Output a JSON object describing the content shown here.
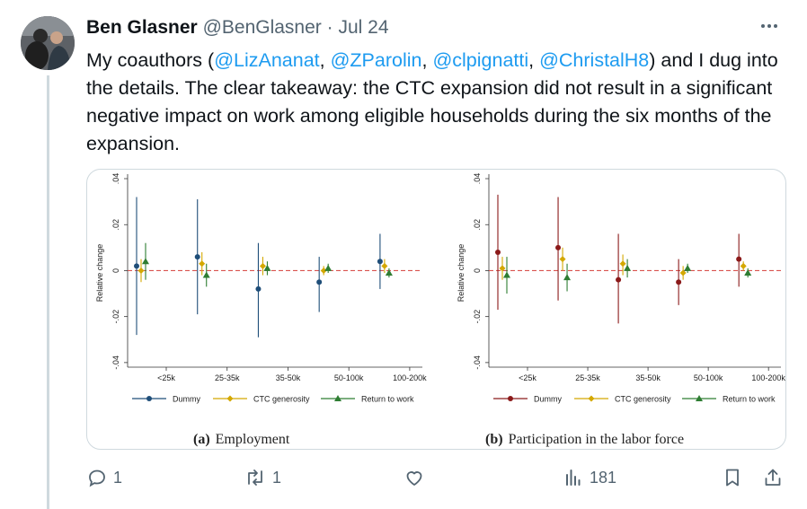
{
  "tweet": {
    "author_name": "Ben Glasner",
    "handle": "@BenGlasner",
    "separator": "·",
    "date": "Jul 24",
    "more_icon": "more-horizontal-icon",
    "text_parts": [
      {
        "text": "My coauthors (",
        "mention": false
      },
      {
        "text": "@LizAnanat",
        "mention": true
      },
      {
        "text": ", ",
        "mention": false
      },
      {
        "text": "@ZParolin",
        "mention": true
      },
      {
        "text": ", ",
        "mention": false
      },
      {
        "text": "@clpignatti",
        "mention": true
      },
      {
        "text": ", ",
        "mention": false
      },
      {
        "text": "@ChristalH8",
        "mention": true
      },
      {
        "text": ") and I dug into the details. The clear takeaway: the CTC expansion did not result in a significant negative impact on work among eligible households during the six months of the expansion.",
        "mention": false
      }
    ]
  },
  "actions": {
    "reply_count": "1",
    "repost_count": "1",
    "like_count": "",
    "views_count": "181"
  },
  "colors": {
    "link": "#1d9bf0",
    "muted": "#536471",
    "employment_series": "#1f4e79",
    "participation_series": "#8b1a1a",
    "ctc_series": "#d4a800",
    "return_series": "#2e7d32",
    "zero_line": "#d9534f"
  },
  "chart_data": [
    {
      "type": "scatter",
      "title": "Employment",
      "panel_label": "(a)",
      "ylabel": "Relative change",
      "ylim": [
        -0.042,
        0.04
      ],
      "yticks": [
        "-.04",
        "-.02",
        "0",
        ".02",
        ".04"
      ],
      "categories": [
        "<25k",
        "25-35k",
        "35-50k",
        "50-100k",
        "100-200k"
      ],
      "legend": [
        "Dummy",
        "CTC generosity",
        "Return to work"
      ],
      "series": [
        {
          "name": "Dummy",
          "values": [
            0.002,
            0.006,
            -0.008,
            -0.005,
            0.004
          ],
          "ci_low": [
            -0.028,
            -0.019,
            -0.029,
            -0.018,
            -0.008
          ],
          "ci_high": [
            0.032,
            0.031,
            0.012,
            0.006,
            0.016
          ]
        },
        {
          "name": "CTC generosity",
          "values": [
            0.0,
            0.003,
            0.002,
            0.0,
            0.002
          ],
          "ci_low": [
            -0.005,
            -0.002,
            -0.002,
            -0.002,
            -0.001
          ],
          "ci_high": [
            0.005,
            0.008,
            0.006,
            0.002,
            0.005
          ]
        },
        {
          "name": "Return to work",
          "values": [
            0.004,
            -0.002,
            0.001,
            0.001,
            -0.001
          ],
          "ci_low": [
            -0.004,
            -0.007,
            -0.002,
            -0.001,
            -0.003
          ],
          "ci_high": [
            0.012,
            0.003,
            0.004,
            0.003,
            0.001
          ]
        }
      ]
    },
    {
      "type": "scatter",
      "title": "Participation in the labor force",
      "panel_label": "(b)",
      "ylabel": "Relative change",
      "ylim": [
        -0.042,
        0.04
      ],
      "yticks": [
        "-.04",
        "-.02",
        "0",
        ".02",
        ".04"
      ],
      "categories": [
        "<25k",
        "25-35k",
        "35-50k",
        "50-100k",
        "100-200k"
      ],
      "legend": [
        "Dummy",
        "CTC generosity",
        "Return to work"
      ],
      "series": [
        {
          "name": "Dummy",
          "values": [
            0.008,
            0.01,
            -0.004,
            -0.005,
            0.005
          ],
          "ci_low": [
            -0.017,
            -0.013,
            -0.023,
            -0.015,
            -0.007
          ],
          "ci_high": [
            0.033,
            0.032,
            0.016,
            0.005,
            0.016
          ]
        },
        {
          "name": "CTC generosity",
          "values": [
            0.001,
            0.005,
            0.003,
            -0.001,
            0.002
          ],
          "ci_low": [
            -0.004,
            0.0,
            -0.002,
            -0.004,
            0.0
          ],
          "ci_high": [
            0.006,
            0.01,
            0.007,
            0.002,
            0.004
          ]
        },
        {
          "name": "Return to work",
          "values": [
            -0.002,
            -0.003,
            0.001,
            0.001,
            -0.001
          ],
          "ci_low": [
            -0.01,
            -0.009,
            -0.003,
            -0.001,
            -0.003
          ],
          "ci_high": [
            0.006,
            0.003,
            0.005,
            0.003,
            0.001
          ]
        }
      ]
    }
  ]
}
